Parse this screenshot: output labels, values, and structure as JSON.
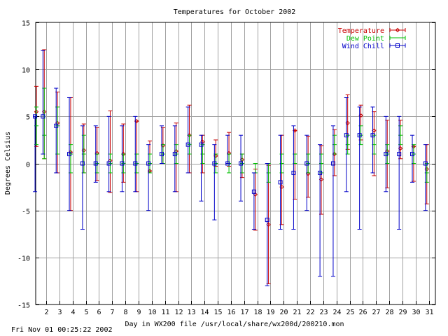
{
  "chart_data": {
    "type": "line",
    "title": "Temperatures for October 2002",
    "xlabel": "Day in WX200 file /usr/local/share/wx200d/200210.mon",
    "ylabel": "Degrees Celsius",
    "xlim": [
      1.2,
      31.5
    ],
    "ylim": [
      -15,
      15
    ],
    "yticks": [
      -15,
      -10,
      -5,
      0,
      5,
      10,
      15
    ],
    "xticks": [
      2,
      3,
      4,
      5,
      6,
      7,
      8,
      9,
      10,
      11,
      12,
      13,
      14,
      15,
      16,
      17,
      18,
      19,
      20,
      21,
      22,
      23,
      24,
      25,
      26,
      27,
      28,
      29,
      30,
      31
    ],
    "grid": true,
    "legend_position": "top-right",
    "series": [
      {
        "name": "Temperature",
        "color": "#c80000",
        "marker": "diamond",
        "points": [
          {
            "x": 1.25,
            "y": 5.5,
            "low": 1.8,
            "high": 8.2
          },
          {
            "x": 1.85,
            "y": 5.5,
            "low": 0.5,
            "high": 12.1
          },
          {
            "x": 2.85,
            "y": 4.3,
            "low": -1.0,
            "high": 7.6
          },
          {
            "x": 3.85,
            "y": 1.2,
            "low": -5.0,
            "high": 7.0
          },
          {
            "x": 4.85,
            "y": 1.4,
            "low": -1.0,
            "high": 4.2
          },
          {
            "x": 5.85,
            "y": 1.1,
            "low": -1.8,
            "high": 3.8
          },
          {
            "x": 6.85,
            "y": 0.3,
            "low": -3.1,
            "high": 5.6
          },
          {
            "x": 7.85,
            "y": 1.0,
            "low": -2.0,
            "high": 4.2
          },
          {
            "x": 8.85,
            "y": 4.5,
            "low": -3.0,
            "high": 4.5
          },
          {
            "x": 9.85,
            "y": -0.8,
            "low": -0.8,
            "high": 2.4
          },
          {
            "x": 10.85,
            "y": 1.9,
            "low": 0.0,
            "high": 3.8
          },
          {
            "x": 11.85,
            "y": 1.3,
            "low": -3.0,
            "high": 4.3
          },
          {
            "x": 12.85,
            "y": 3.0,
            "low": -1.0,
            "high": 6.2
          },
          {
            "x": 13.85,
            "y": 2.3,
            "low": -1.0,
            "high": 3.0
          },
          {
            "x": 14.85,
            "y": 0.8,
            "low": -0.3,
            "high": 2.5
          },
          {
            "x": 15.85,
            "y": 1.1,
            "low": -0.3,
            "high": 3.3
          },
          {
            "x": 16.85,
            "y": 0.4,
            "low": -1.5,
            "high": 1.0
          },
          {
            "x": 17.85,
            "y": -3.3,
            "low": -7.1,
            "high": -0.6
          },
          {
            "x": 18.85,
            "y": -6.5,
            "low": -12.8,
            "high": -0.2
          },
          {
            "x": 19.85,
            "y": -2.5,
            "low": -6.5,
            "high": 3.0
          },
          {
            "x": 20.85,
            "y": 3.5,
            "low": -3.8,
            "high": 3.5
          },
          {
            "x": 21.85,
            "y": -1.1,
            "low": -3.6,
            "high": 2.9
          },
          {
            "x": 22.85,
            "y": -1.7,
            "low": -5.4,
            "high": 1.9
          },
          {
            "x": 23.85,
            "y": 1.0,
            "low": -1.3,
            "high": 3.6
          },
          {
            "x": 24.85,
            "y": 4.3,
            "low": 1.5,
            "high": 7.3
          },
          {
            "x": 25.85,
            "y": 5.1,
            "low": 2.5,
            "high": 6.2
          },
          {
            "x": 26.85,
            "y": 3.5,
            "low": -1.3,
            "high": 5.5
          },
          {
            "x": 27.85,
            "y": 1.3,
            "low": -2.6,
            "high": 4.6
          },
          {
            "x": 28.85,
            "y": 1.6,
            "low": 0.5,
            "high": 4.6
          },
          {
            "x": 29.85,
            "y": 1.8,
            "low": -1.9,
            "high": 1.8
          },
          {
            "x": 30.85,
            "y": -0.6,
            "low": -4.3,
            "high": 2.0
          }
        ]
      },
      {
        "name": "Dew Point",
        "color": "#00c000",
        "marker": "dash",
        "points": [
          {
            "x": 1.25,
            "y": 4.0,
            "low": 2.0,
            "high": 6.0
          },
          {
            "x": 1.85,
            "y": 3.0,
            "low": 0.5,
            "high": 8.0
          },
          {
            "x": 2.85,
            "y": 4.0,
            "low": 1.0,
            "high": 6.0
          },
          {
            "x": 3.85,
            "y": 1.0,
            "low": -1.0,
            "high": 2.0
          },
          {
            "x": 4.85,
            "y": 1.0,
            "low": -1.0,
            "high": 3.0
          },
          {
            "x": 5.85,
            "y": 0.0,
            "low": -1.0,
            "high": 1.0
          },
          {
            "x": 6.85,
            "y": 0.0,
            "low": -1.0,
            "high": 1.0
          },
          {
            "x": 7.85,
            "y": 0.0,
            "low": -1.0,
            "high": 1.0
          },
          {
            "x": 8.85,
            "y": 0.0,
            "low": -1.0,
            "high": 1.0
          },
          {
            "x": 9.85,
            "y": 0.0,
            "low": -1.0,
            "high": 1.0
          },
          {
            "x": 10.85,
            "y": 1.0,
            "low": 0.0,
            "high": 2.0
          },
          {
            "x": 11.85,
            "y": 1.0,
            "low": 0.0,
            "high": 2.0
          },
          {
            "x": 12.85,
            "y": 2.0,
            "low": 1.0,
            "high": 3.0
          },
          {
            "x": 13.85,
            "y": 1.0,
            "low": 0.0,
            "high": 2.0
          },
          {
            "x": 14.85,
            "y": 0.0,
            "low": -1.0,
            "high": 1.0
          },
          {
            "x": 15.85,
            "y": 0.0,
            "low": -1.0,
            "high": 1.0
          },
          {
            "x": 16.85,
            "y": 0.0,
            "low": -1.0,
            "high": 1.0
          },
          {
            "x": 17.85,
            "y": 0.0,
            "low": -1.0,
            "high": 0.0
          },
          {
            "x": 18.85,
            "y": -1.0,
            "low": -2.0,
            "high": 0.0
          },
          {
            "x": 19.85,
            "y": 0.0,
            "low": -1.0,
            "high": 1.0
          },
          {
            "x": 20.85,
            "y": 1.0,
            "low": 0.0,
            "high": 1.0
          },
          {
            "x": 21.85,
            "y": 0.0,
            "low": -1.0,
            "high": 1.0
          },
          {
            "x": 22.85,
            "y": 0.0,
            "low": -1.0,
            "high": 1.0
          },
          {
            "x": 23.85,
            "y": 2.0,
            "low": 1.0,
            "high": 3.0
          },
          {
            "x": 24.85,
            "y": 2.0,
            "low": 1.0,
            "high": 3.0
          },
          {
            "x": 25.85,
            "y": 3.0,
            "low": 2.0,
            "high": 4.0
          },
          {
            "x": 26.85,
            "y": 2.0,
            "low": 1.0,
            "high": 3.0
          },
          {
            "x": 27.85,
            "y": 1.0,
            "low": 0.0,
            "high": 2.0
          },
          {
            "x": 28.85,
            "y": 3.0,
            "low": 2.0,
            "high": 4.0
          },
          {
            "x": 29.85,
            "y": 1.0,
            "low": 0.0,
            "high": 2.0
          },
          {
            "x": 30.85,
            "y": -1.0,
            "low": -2.0,
            "high": 0.0
          }
        ]
      },
      {
        "name": "Wind Chill",
        "color": "#0000c8",
        "marker": "square",
        "points": [
          {
            "x": 1.15,
            "y": 5.0,
            "low": -3.0,
            "high": 5.0
          },
          {
            "x": 1.75,
            "y": 5.0,
            "low": 1.0,
            "high": 12.0
          },
          {
            "x": 2.75,
            "y": 4.0,
            "low": -1.0,
            "high": 8.0
          },
          {
            "x": 3.75,
            "y": 1.0,
            "low": -5.0,
            "high": 7.0
          },
          {
            "x": 4.75,
            "y": 0.0,
            "low": -7.0,
            "high": 4.0
          },
          {
            "x": 5.75,
            "y": 0.0,
            "low": -2.0,
            "high": 4.0
          },
          {
            "x": 6.75,
            "y": 0.0,
            "low": -3.0,
            "high": 5.0
          },
          {
            "x": 7.75,
            "y": 0.0,
            "low": -3.0,
            "high": 4.0
          },
          {
            "x": 8.75,
            "y": 0.0,
            "low": -3.0,
            "high": 5.0
          },
          {
            "x": 9.75,
            "y": 0.0,
            "low": -5.0,
            "high": 2.0
          },
          {
            "x": 10.75,
            "y": 1.0,
            "low": 0.0,
            "high": 4.0
          },
          {
            "x": 11.75,
            "y": 1.0,
            "low": -3.0,
            "high": 4.0
          },
          {
            "x": 12.75,
            "y": 2.0,
            "low": -1.0,
            "high": 6.0
          },
          {
            "x": 13.75,
            "y": 2.0,
            "low": -4.0,
            "high": 3.0
          },
          {
            "x": 14.75,
            "y": 0.0,
            "low": -6.0,
            "high": 2.0
          },
          {
            "x": 15.75,
            "y": 0.0,
            "low": 0.0,
            "high": 3.0
          },
          {
            "x": 16.75,
            "y": 0.0,
            "low": -4.0,
            "high": 3.0
          },
          {
            "x": 17.75,
            "y": -3.0,
            "low": -7.0,
            "high": -1.0
          },
          {
            "x": 18.75,
            "y": -6.0,
            "low": -13.0,
            "high": 0.0
          },
          {
            "x": 19.75,
            "y": -2.0,
            "low": -7.0,
            "high": 3.0
          },
          {
            "x": 20.75,
            "y": -1.0,
            "low": -7.0,
            "high": 4.0
          },
          {
            "x": 21.75,
            "y": 0.0,
            "low": -5.0,
            "high": 3.0
          },
          {
            "x": 22.75,
            "y": -1.0,
            "low": -12.0,
            "high": 2.0
          },
          {
            "x": 23.75,
            "y": 0.0,
            "low": -12.0,
            "high": 4.0
          },
          {
            "x": 24.75,
            "y": 3.0,
            "low": -3.0,
            "high": 7.0
          },
          {
            "x": 25.75,
            "y": 3.0,
            "low": -7.0,
            "high": 6.0
          },
          {
            "x": 26.75,
            "y": 3.0,
            "low": -1.0,
            "high": 6.0
          },
          {
            "x": 27.75,
            "y": 1.0,
            "low": -3.0,
            "high": 5.0
          },
          {
            "x": 28.75,
            "y": 1.0,
            "low": -7.0,
            "high": 5.0
          },
          {
            "x": 29.75,
            "y": 1.0,
            "low": -2.0,
            "high": 3.0
          },
          {
            "x": 30.75,
            "y": 0.0,
            "low": -5.0,
            "high": 2.0
          }
        ]
      }
    ]
  },
  "footer": "Fri Nov 01 00:25:22 2002"
}
